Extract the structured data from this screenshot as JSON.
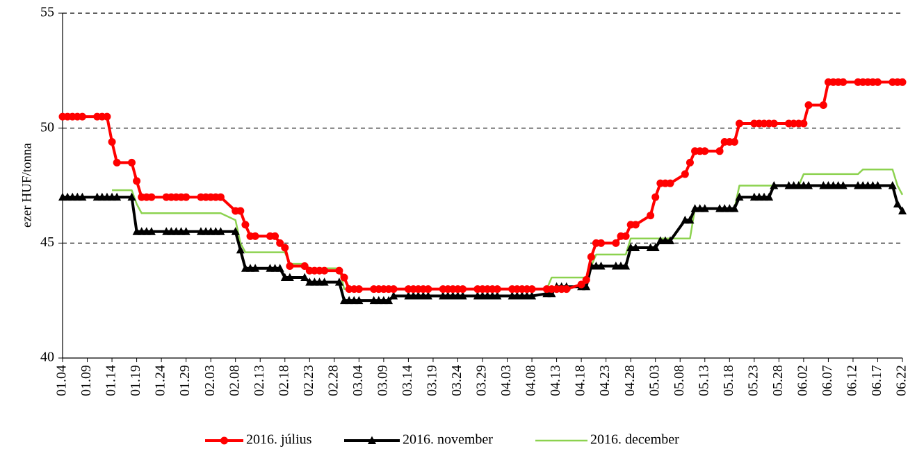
{
  "chart_data": {
    "type": "line",
    "ylabel": "ezer HUF/tonna",
    "ylim": [
      40,
      55
    ],
    "yticks": [
      40,
      45,
      50,
      55
    ],
    "grid": true,
    "xlim": [
      "01.04",
      "06.22"
    ],
    "xticks": [
      "01.04",
      "01.09",
      "01.14",
      "01.19",
      "01.24",
      "01.29",
      "02.03",
      "02.08",
      "02.13",
      "02.18",
      "02.23",
      "02.28",
      "03.04",
      "03.09",
      "03.14",
      "03.19",
      "03.24",
      "03.29",
      "04.03",
      "04.08",
      "04.13",
      "04.18",
      "04.23",
      "04.28",
      "05.03",
      "05.08",
      "05.13",
      "05.18",
      "05.23",
      "05.28",
      "06.02",
      "06.07",
      "06.12",
      "06.17",
      "06.22"
    ],
    "legend": "bottom",
    "x": [
      "01.04",
      "01.05",
      "01.06",
      "01.07",
      "01.08",
      "01.11",
      "01.12",
      "01.13",
      "01.14",
      "01.15",
      "01.18",
      "01.19",
      "01.20",
      "01.21",
      "01.22",
      "01.25",
      "01.26",
      "01.27",
      "01.28",
      "01.29",
      "02.01",
      "02.02",
      "02.03",
      "02.04",
      "02.05",
      "02.08",
      "02.09",
      "02.10",
      "02.11",
      "02.12",
      "02.15",
      "02.16",
      "02.17",
      "02.18",
      "02.19",
      "02.22",
      "02.23",
      "02.24",
      "02.25",
      "02.26",
      "02.29",
      "03.01",
      "03.02",
      "03.03",
      "03.04",
      "03.07",
      "03.08",
      "03.09",
      "03.10",
      "03.11",
      "03.14",
      "03.15",
      "03.16",
      "03.17",
      "03.18",
      "03.21",
      "03.22",
      "03.23",
      "03.24",
      "03.25",
      "03.28",
      "03.29",
      "03.30",
      "03.31",
      "04.01",
      "04.04",
      "04.05",
      "04.06",
      "04.07",
      "04.08",
      "04.11",
      "04.12",
      "04.13",
      "04.14",
      "04.15",
      "04.18",
      "04.19",
      "04.20",
      "04.21",
      "04.22",
      "04.25",
      "04.26",
      "04.27",
      "04.28",
      "04.29",
      "05.02",
      "05.03",
      "05.04",
      "05.05",
      "05.06",
      "05.09",
      "05.10",
      "05.11",
      "05.12",
      "05.13",
      "05.16",
      "05.17",
      "05.18",
      "05.19",
      "05.20",
      "05.23",
      "05.24",
      "05.25",
      "05.26",
      "05.27",
      "05.30",
      "05.31",
      "06.01",
      "06.02",
      "06.03",
      "06.06",
      "06.07",
      "06.08",
      "06.09",
      "06.10",
      "06.13",
      "06.14",
      "06.15",
      "06.16",
      "06.17",
      "06.20",
      "06.21",
      "06.22"
    ],
    "series": [
      {
        "name": "2016. július",
        "color": "#ff0000",
        "marker": "circle",
        "values": [
          50.5,
          50.5,
          50.5,
          50.5,
          50.5,
          50.5,
          50.5,
          50.5,
          49.4,
          48.5,
          48.5,
          47.7,
          47.0,
          47.0,
          47.0,
          47.0,
          47.0,
          47.0,
          47.0,
          47.0,
          47.0,
          47.0,
          47.0,
          47.0,
          47.0,
          46.4,
          46.4,
          45.8,
          45.3,
          45.3,
          45.3,
          45.3,
          45.0,
          44.8,
          44.0,
          44.0,
          43.8,
          43.8,
          43.8,
          43.8,
          43.8,
          43.5,
          43.0,
          43.0,
          43.0,
          43.0,
          43.0,
          43.0,
          43.0,
          43.0,
          43.0,
          43.0,
          43.0,
          43.0,
          43.0,
          43.0,
          43.0,
          43.0,
          43.0,
          43.0,
          43.0,
          43.0,
          43.0,
          43.0,
          43.0,
          43.0,
          43.0,
          43.0,
          43.0,
          43.0,
          43.0,
          43.0,
          43.0,
          43.0,
          43.0,
          43.2,
          43.4,
          44.4,
          45.0,
          45.0,
          45.0,
          45.3,
          45.3,
          45.8,
          45.8,
          46.2,
          47.0,
          47.6,
          47.6,
          47.6,
          48.0,
          48.5,
          49.0,
          49.0,
          49.0,
          49.0,
          49.4,
          49.4,
          49.4,
          50.2,
          50.2,
          50.2,
          50.2,
          50.2,
          50.2,
          50.2,
          50.2,
          50.2,
          50.2,
          51.0,
          51.0,
          52.0,
          52.0,
          52.0,
          52.0,
          52.0,
          52.0,
          52.0,
          52.0,
          52.0,
          52.0,
          52.0,
          52.0
        ]
      },
      {
        "name": "2016. november",
        "color": "#000000",
        "marker": "triangle",
        "values": [
          47.0,
          47.0,
          47.0,
          47.0,
          47.0,
          47.0,
          47.0,
          47.0,
          47.0,
          47.0,
          47.0,
          45.5,
          45.5,
          45.5,
          45.5,
          45.5,
          45.5,
          45.5,
          45.5,
          45.5,
          45.5,
          45.5,
          45.5,
          45.5,
          45.5,
          45.5,
          44.7,
          43.9,
          43.9,
          43.9,
          43.9,
          43.9,
          43.9,
          43.5,
          43.5,
          43.5,
          43.3,
          43.3,
          43.3,
          43.3,
          43.3,
          42.5,
          42.5,
          42.5,
          42.5,
          42.5,
          42.5,
          42.5,
          42.5,
          42.7,
          42.7,
          42.7,
          42.7,
          42.7,
          42.7,
          42.7,
          42.7,
          42.7,
          42.7,
          42.7,
          42.7,
          42.7,
          42.7,
          42.7,
          42.7,
          42.7,
          42.7,
          42.7,
          42.7,
          42.7,
          42.8,
          42.8,
          43.1,
          43.1,
          43.1,
          43.1,
          43.1,
          44.0,
          44.0,
          44.0,
          44.0,
          44.0,
          44.0,
          44.8,
          44.8,
          44.8,
          44.8,
          45.1,
          45.1,
          45.1,
          46.0,
          46.0,
          46.5,
          46.5,
          46.5,
          46.5,
          46.5,
          46.5,
          46.5,
          47.0,
          47.0,
          47.0,
          47.0,
          47.0,
          47.5,
          47.5,
          47.5,
          47.5,
          47.5,
          47.5,
          47.5,
          47.5,
          47.5,
          47.5,
          47.5,
          47.5,
          47.5,
          47.5,
          47.5,
          47.5,
          47.5,
          46.7,
          46.4
        ]
      },
      {
        "name": "2016. december",
        "color": "#8cd24f",
        "values": [
          null,
          null,
          null,
          null,
          null,
          null,
          null,
          null,
          47.3,
          47.3,
          47.3,
          46.7,
          46.3,
          46.3,
          46.3,
          46.3,
          46.3,
          46.3,
          46.3,
          46.3,
          46.3,
          46.3,
          46.3,
          46.3,
          46.3,
          46.0,
          45.0,
          44.6,
          44.6,
          44.6,
          44.6,
          44.6,
          44.6,
          44.6,
          44.1,
          44.1,
          43.9,
          43.9,
          43.9,
          43.9,
          43.9,
          43.0,
          43.0,
          43.0,
          43.0,
          43.0,
          43.0,
          43.0,
          43.0,
          43.0,
          43.0,
          43.0,
          43.0,
          43.0,
          43.0,
          43.0,
          43.0,
          43.0,
          43.0,
          43.0,
          43.0,
          43.0,
          43.0,
          43.0,
          43.0,
          43.0,
          43.0,
          43.0,
          43.0,
          43.0,
          43.0,
          43.5,
          43.5,
          43.5,
          43.5,
          43.5,
          43.5,
          44.0,
          44.5,
          44.5,
          44.5,
          44.5,
          44.5,
          45.2,
          45.2,
          45.2,
          45.2,
          45.2,
          45.2,
          45.2,
          45.2,
          45.2,
          46.5,
          46.5,
          46.5,
          46.5,
          46.5,
          46.5,
          46.5,
          47.5,
          47.5,
          47.5,
          47.5,
          47.5,
          47.5,
          47.5,
          47.5,
          47.5,
          48.0,
          48.0,
          48.0,
          48.0,
          48.0,
          48.0,
          48.0,
          48.0,
          48.2,
          48.2,
          48.2,
          48.2,
          48.2,
          47.5,
          47.1
        ]
      }
    ]
  }
}
